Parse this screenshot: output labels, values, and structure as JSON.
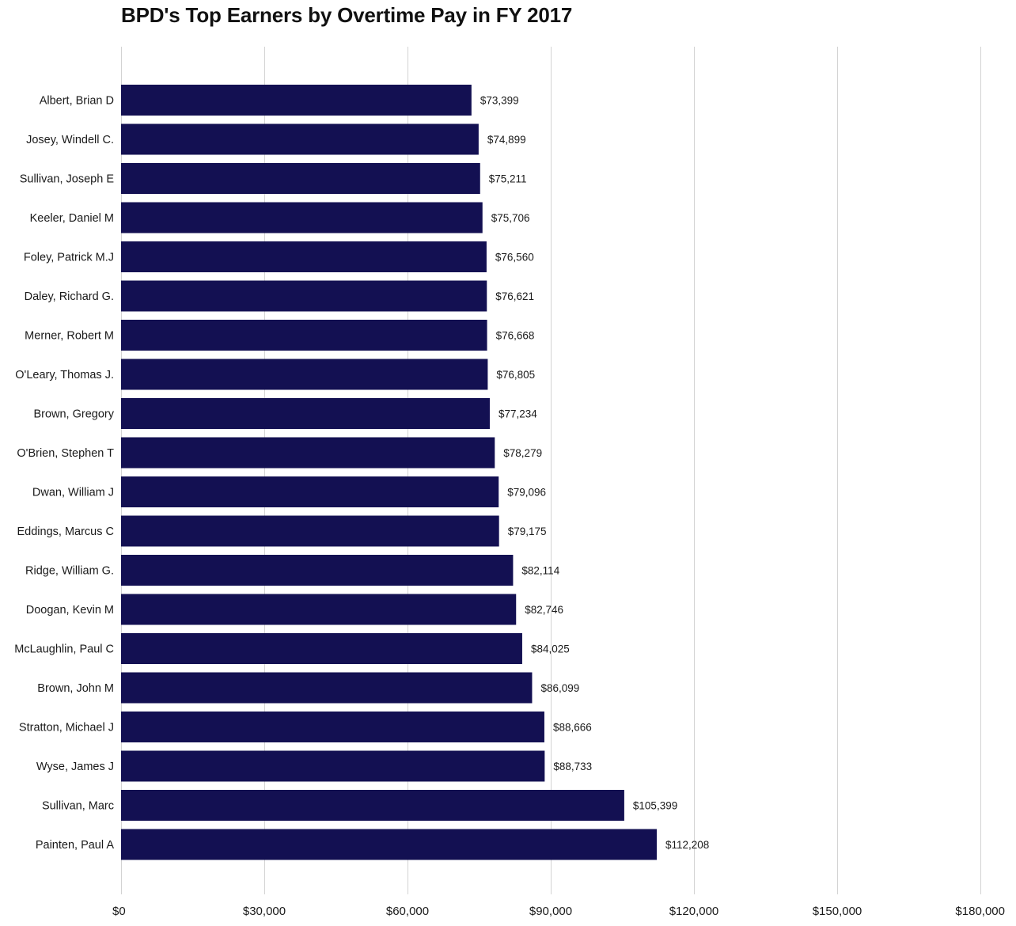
{
  "title": "BPD's Top Earners by Overtime Pay in FY 2017",
  "colors": {
    "bar": "#131052",
    "grid": "#d3d3d3",
    "text": "#1a1a1a"
  },
  "chart_data": {
    "type": "bar",
    "orientation": "horizontal",
    "title": "BPD's Top Earners by Overtime Pay in FY 2017",
    "xlabel": "",
    "ylabel": "",
    "xlim": [
      0,
      180000
    ],
    "x_ticks": [
      0,
      30000,
      60000,
      90000,
      120000,
      150000,
      180000
    ],
    "x_tick_labels": [
      "$0",
      "$30,000",
      "$60,000",
      "$90,000",
      "$120,000",
      "$150,000",
      "$180,000"
    ],
    "grid": "vertical",
    "legend": "none",
    "categories": [
      "Albert, Brian D",
      "Josey, Windell C.",
      "Sullivan, Joseph E",
      "Keeler, Daniel M",
      "Foley, Patrick M.J",
      "Daley, Richard G.",
      "Merner, Robert M",
      "O'Leary, Thomas J.",
      "Brown, Gregory",
      "O'Brien, Stephen T",
      "Dwan, William J",
      "Eddings, Marcus C",
      "Ridge, William G.",
      "Doogan, Kevin M",
      "McLaughlin, Paul C",
      "Brown, John M",
      "Stratton, Michael J",
      "Wyse, James J",
      "Sullivan, Marc",
      "Painten, Paul A"
    ],
    "values": [
      73399,
      74899,
      75211,
      75706,
      76560,
      76621,
      76668,
      76805,
      77234,
      78279,
      79096,
      79175,
      82114,
      82746,
      84025,
      86099,
      88666,
      88733,
      105399,
      112208
    ],
    "value_labels": [
      "$73,399",
      "$74,899",
      "$75,211",
      "$75,706",
      "$76,560",
      "$76,621",
      "$76,668",
      "$76,805",
      "$77,234",
      "$78,279",
      "$79,096",
      "$79,175",
      "$82,114",
      "$82,746",
      "$84,025",
      "$86,099",
      "$88,666",
      "$88,733",
      "$105,399",
      "$112,208"
    ]
  }
}
